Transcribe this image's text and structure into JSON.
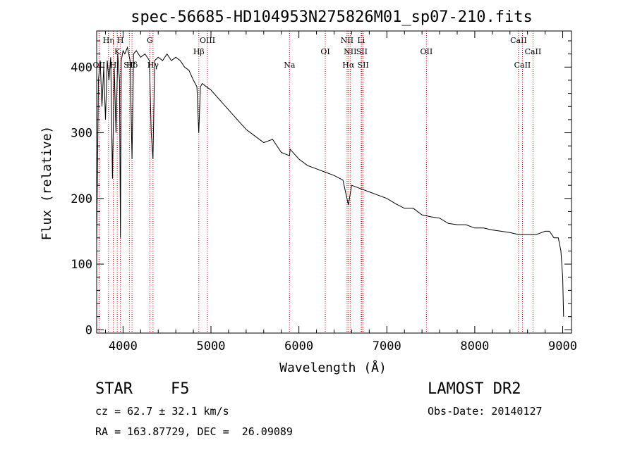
{
  "chart_data": {
    "type": "line",
    "title": "spec-56685-HD104953N275826M01_sp07-210.fits",
    "xlabel": "Wavelength (Å)",
    "ylabel": "Flux (relative)",
    "xlim": [
      3700,
      9100
    ],
    "ylim": [
      -5,
      455
    ],
    "x_ticks": [
      4000,
      5000,
      6000,
      7000,
      8000,
      9000
    ],
    "y_ticks": [
      0,
      100,
      200,
      300,
      400
    ],
    "grid": false,
    "legend": "none",
    "series_color": "#000000",
    "line_color": "#cc0000",
    "series": [
      {
        "x": [
          3700,
          3720,
          3740,
          3760,
          3780,
          3800,
          3820,
          3840,
          3860,
          3880,
          3900,
          3920,
          3940,
          3960,
          3970,
          3980,
          4000,
          4020,
          4050,
          4080,
          4102,
          4120,
          4150,
          4200,
          4250,
          4300,
          4320,
          4340,
          4360,
          4400,
          4450,
          4500,
          4550,
          4600,
          4650,
          4700,
          4750,
          4800,
          4840,
          4861,
          4880,
          4900,
          4950,
          5000,
          5100,
          5200,
          5300,
          5400,
          5500,
          5600,
          5700,
          5800,
          5893,
          5900,
          6000,
          6100,
          6200,
          6300,
          6400,
          6500,
          6563,
          6600,
          6700,
          6800,
          6900,
          7000,
          7100,
          7200,
          7300,
          7400,
          7500,
          7600,
          7700,
          7800,
          7900,
          8000,
          8100,
          8200,
          8300,
          8400,
          8500,
          8600,
          8700,
          8800,
          8850,
          8900,
          8950,
          8980,
          9000,
          9010
        ],
        "y": [
          130,
          380,
          410,
          340,
          400,
          320,
          410,
          380,
          415,
          230,
          400,
          300,
          420,
          380,
          140,
          410,
          425,
          420,
          430,
          410,
          260,
          420,
          425,
          415,
          420,
          410,
          300,
          260,
          410,
          415,
          410,
          420,
          410,
          415,
          410,
          400,
          395,
          380,
          370,
          300,
          370,
          375,
          370,
          365,
          350,
          335,
          320,
          305,
          295,
          285,
          290,
          270,
          265,
          275,
          260,
          250,
          245,
          240,
          235,
          228,
          190,
          220,
          215,
          210,
          205,
          200,
          192,
          185,
          185,
          175,
          172,
          170,
          162,
          160,
          160,
          155,
          155,
          152,
          150,
          148,
          145,
          145,
          145,
          150,
          150,
          140,
          140,
          120,
          80,
          20
        ]
      }
    ],
    "lines": [
      {
        "label": "OII",
        "x": 3727,
        "row": 4
      },
      {
        "label": "Hη",
        "x": 3835,
        "row": 1
      },
      {
        "label": "H",
        "x": 3889,
        "row": 4
      },
      {
        "label": "K",
        "x": 3934,
        "row": 2
      },
      {
        "label": "H",
        "x": 3970,
        "row": 1
      },
      {
        "label": "SII",
        "x": 4072,
        "row": 4
      },
      {
        "label": "Hδ",
        "x": 4102,
        "row": 4
      },
      {
        "label": "G",
        "x": 4305,
        "row": 1
      },
      {
        "label": "Hγ",
        "x": 4341,
        "row": 4
      },
      {
        "label": "Hβ",
        "x": 4862,
        "row": 2
      },
      {
        "label": "OIII",
        "x": 4960,
        "row": 1
      },
      {
        "label": "Na",
        "x": 5893,
        "row": 3
      },
      {
        "label": "OI",
        "x": 6300,
        "row": 2
      },
      {
        "label": "NII",
        "x": 6548,
        "row": 1
      },
      {
        "label": "Hα",
        "x": 6563,
        "row": 3
      },
      {
        "label": "NII",
        "x": 6583,
        "row": 2
      },
      {
        "label": "Li",
        "x": 6708,
        "row": 1
      },
      {
        "label": "SII",
        "x": 6716,
        "row": 2
      },
      {
        "label": "SII",
        "x": 6731,
        "row": 3
      },
      {
        "label": "OII",
        "x": 7450,
        "row": 2
      },
      {
        "label": "CaII",
        "x": 8498,
        "row": 1
      },
      {
        "label": "CaII",
        "x": 8542,
        "row": 3
      },
      {
        "label": "CaII",
        "x": 8662,
        "row": 2
      }
    ]
  },
  "footer": {
    "class_label": "STAR",
    "subclass": "F5",
    "survey": "LAMOST DR2",
    "redshift": "cz = 62.7 ± 32.1 km/s",
    "obs_date": "Obs-Date: 20140127",
    "coords": "RA = 163.87729, DEC =  26.09089"
  }
}
